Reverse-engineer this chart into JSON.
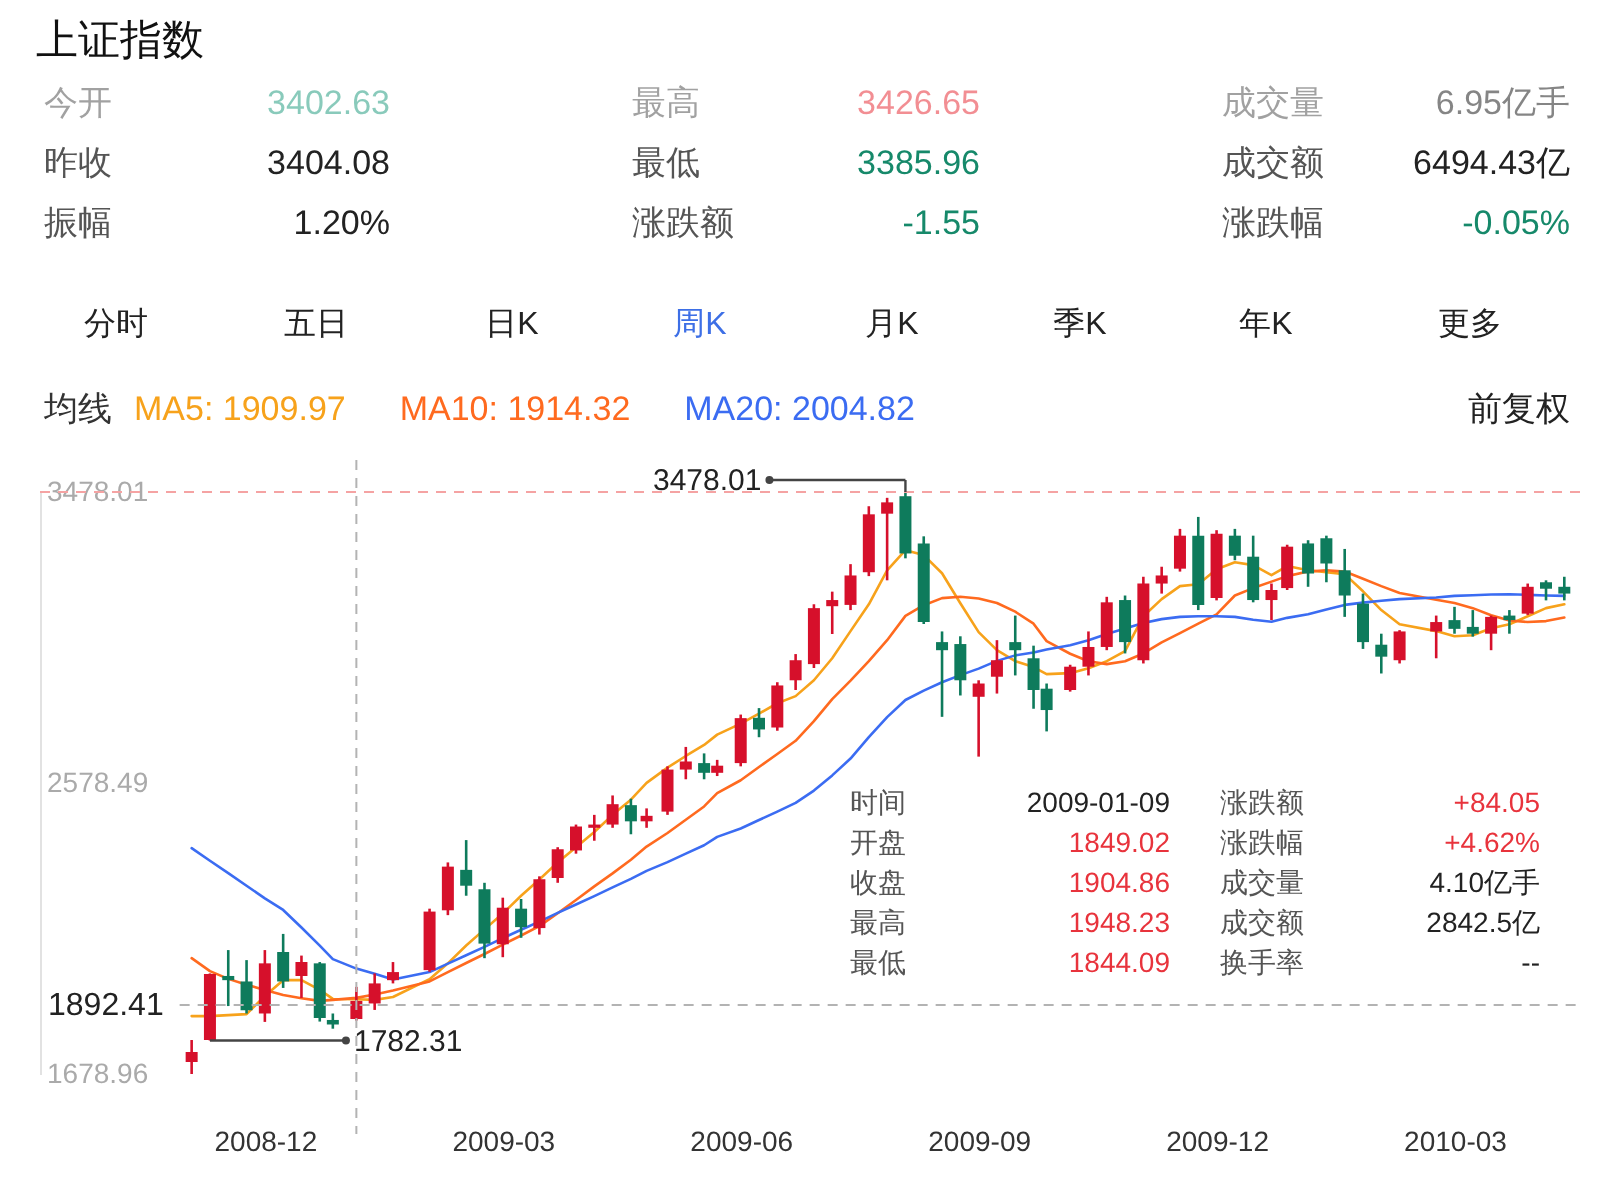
{
  "chart_data": {
    "type": "candlestick",
    "title": "上证指数",
    "legend_title": "均线",
    "legend": "top left",
    "x": [
      "2008-11-07",
      "2008-11-14",
      "2008-11-21",
      "2008-11-28",
      "2008-12-05",
      "2008-12-12",
      "2008-12-19",
      "2008-12-26",
      "2008-12-31",
      "2009-01-09",
      "2009-01-16",
      "2009-01-23",
      "2009-02-06",
      "2009-02-13",
      "2009-02-20",
      "2009-02-27",
      "2009-03-06",
      "2009-03-13",
      "2009-03-20",
      "2009-03-27",
      "2009-04-03",
      "2009-04-10",
      "2009-04-17",
      "2009-04-24",
      "2009-04-30",
      "2009-05-08",
      "2009-05-15",
      "2009-05-22",
      "2009-05-27",
      "2009-06-05",
      "2009-06-12",
      "2009-06-19",
      "2009-06-26",
      "2009-07-03",
      "2009-07-10",
      "2009-07-17",
      "2009-07-24",
      "2009-07-31",
      "2009-08-07",
      "2009-08-14",
      "2009-08-21",
      "2009-08-28",
      "2009-09-04",
      "2009-09-11",
      "2009-09-18",
      "2009-09-25",
      "2009-09-30",
      "2009-10-09",
      "2009-10-16",
      "2009-10-23",
      "2009-10-30",
      "2009-11-06",
      "2009-11-13",
      "2009-11-20",
      "2009-11-27",
      "2009-12-04",
      "2009-12-11",
      "2009-12-18",
      "2009-12-25",
      "2009-12-31",
      "2010-01-08",
      "2010-01-15",
      "2010-01-22",
      "2010-01-29",
      "2010-02-05",
      "2010-02-12",
      "2010-02-26",
      "2010-03-05",
      "2010-03-12",
      "2010-03-19",
      "2010-03-26",
      "2010-04-02",
      "2010-04-09",
      "2010-04-16"
    ],
    "ohlc": [
      [
        1716,
        1784,
        1678.96,
        1747
      ],
      [
        1784,
        1990,
        1782.31,
        1988
      ],
      [
        1982,
        2062,
        1889,
        1969
      ],
      [
        1965,
        2031,
        1866,
        1876
      ],
      [
        1866,
        2062,
        1840,
        2021
      ],
      [
        2056,
        2112,
        1945,
        1965
      ],
      [
        1982,
        2045,
        1914,
        2025
      ],
      [
        2021,
        2025,
        1841,
        1852
      ],
      [
        1846,
        1866,
        1819,
        1832
      ],
      [
        1849.02,
        1948.23,
        1844.09,
        1904.86
      ],
      [
        1897,
        1990,
        1877,
        1959
      ],
      [
        1969,
        2025,
        1959,
        1994
      ],
      [
        2000,
        2190,
        1995,
        2181
      ],
      [
        2185,
        2333,
        2170,
        2320
      ],
      [
        2310,
        2402,
        2230,
        2261
      ],
      [
        2250,
        2270,
        2037,
        2082
      ],
      [
        2080,
        2224,
        2040,
        2193
      ],
      [
        2190,
        2220,
        2100,
        2133
      ],
      [
        2130,
        2290,
        2110,
        2281
      ],
      [
        2285,
        2380,
        2270,
        2374
      ],
      [
        2370,
        2450,
        2360,
        2444
      ],
      [
        2440,
        2480,
        2400,
        2450
      ],
      [
        2450,
        2540,
        2440,
        2513
      ],
      [
        2510,
        2530,
        2420,
        2460
      ],
      [
        2460,
        2500,
        2440,
        2477
      ],
      [
        2490,
        2630,
        2480,
        2620
      ],
      [
        2620,
        2690,
        2590,
        2645
      ],
      [
        2640,
        2670,
        2590,
        2610
      ],
      [
        2610,
        2650,
        2600,
        2632
      ],
      [
        2640,
        2790,
        2630,
        2779
      ],
      [
        2780,
        2810,
        2720,
        2744
      ],
      [
        2750,
        2890,
        2740,
        2880
      ],
      [
        2896,
        2977,
        2866,
        2958
      ],
      [
        2946,
        3131,
        2934,
        3119
      ],
      [
        3125,
        3170,
        3039,
        3144
      ],
      [
        3129,
        3255,
        3113,
        3220
      ],
      [
        3230,
        3434,
        3218,
        3409
      ],
      [
        3411,
        3460,
        3205,
        3446
      ],
      [
        3465,
        3478.01,
        3273,
        3288
      ],
      [
        3319,
        3341,
        3070,
        3076
      ],
      [
        3014,
        3047,
        2783,
        2989
      ],
      [
        3008,
        3032,
        2849,
        2896
      ],
      [
        2845,
        2896,
        2660,
        2886
      ],
      [
        2907,
        3020,
        2855,
        2958
      ],
      [
        3014,
        3096,
        2911,
        2989
      ],
      [
        2964,
        3003,
        2808,
        2866
      ],
      [
        2870,
        2886,
        2738,
        2804
      ],
      [
        2866,
        2944,
        2861,
        2938
      ],
      [
        2938,
        3047,
        2911,
        2999
      ],
      [
        2999,
        3154,
        2989,
        3137
      ],
      [
        3144,
        3158,
        2979,
        3014
      ],
      [
        2958,
        3216,
        2948,
        3195
      ],
      [
        3195,
        3247,
        3164,
        3220
      ],
      [
        3241,
        3364,
        3232,
        3343
      ],
      [
        3343,
        3401,
        3113,
        3129
      ],
      [
        3150,
        3360,
        3143,
        3349
      ],
      [
        3343,
        3364,
        3267,
        3281
      ],
      [
        3278,
        3343,
        3137,
        3144
      ],
      [
        3144,
        3195,
        3082,
        3175
      ],
      [
        3181,
        3315,
        3175,
        3309
      ],
      [
        3319,
        3329,
        3185,
        3226
      ],
      [
        3335,
        3343,
        3199,
        3257
      ],
      [
        3236,
        3302,
        3092,
        3158
      ],
      [
        3133,
        3164,
        2993,
        3014
      ],
      [
        3006,
        3040,
        2917,
        2969
      ],
      [
        2958,
        3051,
        2948,
        3047
      ],
      [
        3047,
        3096,
        2964,
        3076
      ],
      [
        3082,
        3123,
        3040,
        3055
      ],
      [
        3061,
        3113,
        3031,
        3040
      ],
      [
        3040,
        3096,
        2989,
        3092
      ],
      [
        3096,
        3113,
        3040,
        3082
      ],
      [
        3102,
        3195,
        3098,
        3185
      ],
      [
        3199,
        3205,
        3143,
        3179
      ],
      [
        3185,
        3216,
        3143,
        3164
      ]
    ],
    "colors": [
      "#d6102b",
      "#d6102b",
      "#0e7b5c",
      "#0e7b5c",
      "#d6102b",
      "#0e7b5c",
      "#d6102b",
      "#0e7b5c",
      "#0e7b5c",
      "#d6102b",
      "#d6102b",
      "#d6102b",
      "#d6102b",
      "#d6102b",
      "#0e7b5c",
      "#0e7b5c",
      "#d6102b",
      "#0e7b5c",
      "#d6102b",
      "#d6102b",
      "#d6102b",
      "#d6102b",
      "#d6102b",
      "#0e7b5c",
      "#d6102b",
      "#d6102b",
      "#d6102b",
      "#0e7b5c",
      "#d6102b",
      "#d6102b",
      "#0e7b5c",
      "#d6102b",
      "#d6102b",
      "#d6102b",
      "#d6102b",
      "#d6102b",
      "#d6102b",
      "#d6102b",
      "#0e7b5c",
      "#0e7b5c",
      "#0e7b5c",
      "#0e7b5c",
      "#d6102b",
      "#d6102b",
      "#0e7b5c",
      "#0e7b5c",
      "#0e7b5c",
      "#d6102b",
      "#d6102b",
      "#d6102b",
      "#0e7b5c",
      "#d6102b",
      "#d6102b",
      "#d6102b",
      "#0e7b5c",
      "#d6102b",
      "#0e7b5c",
      "#0e7b5c",
      "#d6102b",
      "#d6102b",
      "#0e7b5c",
      "#0e7b5c",
      "#0e7b5c",
      "#0e7b5c",
      "#0e7b5c",
      "#d6102b",
      "#d6102b",
      "#0e7b5c",
      "#0e7b5c",
      "#d6102b",
      "#0e7b5c",
      "#d6102b",
      "#0e7b5c",
      "#0e7b5c"
    ],
    "series": [
      {
        "name": "MA5: 1909.97",
        "type": "line",
        "color": "#f7a21b",
        "values": [
          1858,
          1858,
          1861,
          1864,
          1920,
          1969,
          1969,
          1939,
          1911,
          1909.97,
          1908,
          1917,
          1972,
          2021,
          2076,
          2126,
          2175,
          2230,
          2280,
          2333,
          2380,
          2427,
          2480,
          2527,
          2579,
          2626,
          2662,
          2696,
          2728,
          2762,
          2793,
          2825,
          2847,
          2896,
          2964,
          3048,
          3131,
          3236,
          3298,
          3283,
          3227,
          3134,
          3045,
          2989,
          2955,
          2937,
          2915,
          2918,
          2933,
          2955,
          2986,
          3094,
          3147,
          3187,
          3193,
          3239,
          3261,
          3252,
          3221,
          3249,
          3236,
          3230,
          3224,
          3171,
          3113,
          3069,
          3048,
          3032,
          3035,
          3057,
          3069,
          3094,
          3119,
          3131
        ]
      },
      {
        "name": "MA10: 1914.32",
        "type": "line",
        "color": "#ff6a1f",
        "values": [
          2037,
          1997,
          1973,
          1955,
          1939,
          1923,
          1913,
          1905,
          1908,
          1914.32,
          1925,
          1937,
          1965,
          1994,
          2022,
          2050,
          2079,
          2107,
          2136,
          2176,
          2217,
          2259,
          2299,
          2341,
          2382,
          2424,
          2465,
          2506,
          2547,
          2587,
          2628,
          2668,
          2709,
          2770,
          2838,
          2895,
          2955,
          3020,
          3095,
          3128,
          3150,
          3154,
          3149,
          3135,
          3108,
          3071,
          3017,
          2978,
          2955,
          2946,
          2955,
          2979,
          3013,
          3042,
          3071,
          3100,
          3158,
          3181,
          3201,
          3218,
          3232,
          3236,
          3232,
          3210,
          3187,
          3166,
          3145,
          3135,
          3119,
          3097,
          3081,
          3076,
          3079,
          3090
        ]
      },
      {
        "name": "MA20: 2004.82",
        "type": "line",
        "color": "#3b6cf2",
        "values": [
          2377,
          2338,
          2300,
          2261,
          2222,
          2186,
          2132,
          2076,
          2034,
          2004.82,
          1989,
          1971,
          1994,
          2020,
          2046,
          2072,
          2099,
          2125,
          2150,
          2177,
          2203,
          2229,
          2256,
          2282,
          2307,
          2334,
          2360,
          2386,
          2412,
          2438,
          2464,
          2490,
          2517,
          2555,
          2602,
          2654,
          2720,
          2782,
          2835,
          2864,
          2890,
          2912,
          2932,
          2956,
          2973,
          2982,
          2991,
          3004,
          3020,
          3039,
          3056,
          3073,
          3085,
          3092,
          3094,
          3094,
          3092,
          3083,
          3077,
          3089,
          3100,
          3115,
          3129,
          3136,
          3142,
          3147,
          3152,
          3157,
          3159,
          3161,
          3162,
          3160,
          3158,
          3157
        ]
      }
    ],
    "xlim": [
      "2008-09-10",
      "2010-04-22"
    ],
    "xticks": [
      {
        "value": "2008-12-05",
        "label": "2008-12"
      },
      {
        "value": "2009-03-06",
        "label": "2009-03"
      },
      {
        "value": "2009-06-05",
        "label": "2009-06"
      },
      {
        "value": "2009-09-04",
        "label": "2009-09"
      },
      {
        "value": "2009-12-04",
        "label": "2009-12"
      },
      {
        "value": "2010-03-05",
        "label": "2010-03"
      }
    ],
    "ylim": [
      1678.96,
      3478.01
    ],
    "yticks": [
      3478.01,
      2578.49,
      1678.96
    ],
    "ref_lines": [
      {
        "axis": "y",
        "value": 3478.01,
        "color": "#f5a3a3",
        "line_style": "dashed"
      },
      {
        "axis": "y",
        "value": 1892.41,
        "label": "1892.41",
        "color": "#b3b3b3",
        "line_style": "dashed"
      },
      {
        "axis": "x",
        "value": "2009-01-09",
        "color": "#b3b3b3",
        "line_style": "dashed"
      }
    ],
    "annotations": [
      "今开",
      "3402.63",
      "最高",
      "3426.65",
      "成交量",
      "6.95亿手",
      "昨收",
      "3404.08",
      "最低",
      "3385.96",
      "成交额",
      "6494.43亿",
      "振幅",
      "1.20%",
      "涨跌额",
      "-1.55",
      "涨跌幅",
      "-0.05%",
      "分时",
      "五日",
      "日K",
      "周K",
      "月K",
      "季K",
      "年K",
      "更多",
      "前复权",
      "时间",
      "2009-01-09",
      "开盘",
      "1849.02",
      "收盘",
      "1904.86",
      "最高",
      "1948.23",
      "最低",
      "1844.09",
      "涨跌额",
      "+84.05",
      "涨跌幅",
      "+4.62%",
      "成交量",
      "4.10亿手",
      "成交额",
      "2842.5亿",
      "换手率",
      "--",
      {
        "text": "3478.01",
        "x": "2009-08-07",
        "y": 3478.01
      },
      {
        "text": "1782.31",
        "x": "2008-11-14",
        "y": 1782.31
      }
    ]
  }
}
